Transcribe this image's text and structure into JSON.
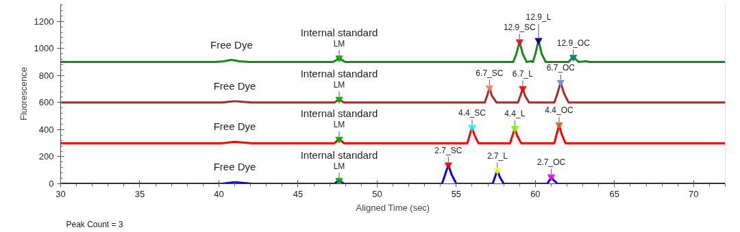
{
  "chart_data": {
    "type": "line",
    "xlabel": "Aligned Time (sec)",
    "ylabel": "Fluorescence",
    "xlim": [
      30,
      72
    ],
    "xticks": [
      30,
      35,
      40,
      45,
      50,
      55,
      60,
      65,
      70
    ],
    "ylim": [
      0,
      1330
    ],
    "yticks": [
      0,
      200,
      400,
      600,
      800,
      1000,
      1200
    ],
    "grid": false,
    "line_style": "solid",
    "marker": "none",
    "series": [
      {
        "color": "#138a13",
        "x": [
          30,
          39.8,
          40.3,
          40.8,
          41.3,
          41.9,
          47.2,
          47.45,
          47.6,
          47.75,
          48,
          58.6,
          58.8,
          59.0,
          59.2,
          59.45,
          59.7,
          59.85,
          60.0,
          60.2,
          60.4,
          60.65,
          62.1,
          62.25,
          62.4,
          62.55,
          62.75,
          63.2,
          63.4,
          72
        ],
        "values": [
          900,
          900,
          905,
          915,
          905,
          900,
          900,
          915,
          930,
          915,
          900,
          900,
          960,
          1050,
          960,
          900,
          905,
          900,
          960,
          1060,
          960,
          900,
          900,
          920,
          935,
          920,
          900,
          905,
          900,
          900
        ]
      },
      {
        "color": "#a52a2a",
        "x": [
          30,
          40.2,
          40.6,
          41.0,
          41.5,
          42.1,
          47.3,
          47.6,
          47.9,
          56.8,
          56.95,
          57.1,
          57.25,
          57.55,
          58.9,
          59.05,
          59.2,
          59.35,
          59.6,
          61.2,
          61.4,
          61.6,
          61.8,
          62.1,
          72
        ],
        "values": [
          600,
          600,
          605,
          610,
          605,
          600,
          600,
          625,
          600,
          600,
          650,
          710,
          650,
          600,
          600,
          650,
          705,
          650,
          600,
          600,
          670,
          750,
          670,
          600,
          600
        ]
      },
      {
        "color": "#ff0000",
        "x": [
          30,
          40.2,
          40.6,
          41.0,
          41.5,
          42.1,
          47.3,
          47.6,
          47.9,
          55.7,
          55.85,
          56.0,
          56.15,
          56.4,
          58.4,
          58.55,
          58.7,
          58.85,
          59.1,
          61.2,
          61.35,
          61.5,
          61.65,
          61.9,
          72
        ],
        "values": [
          300,
          300,
          305,
          310,
          305,
          300,
          300,
          330,
          300,
          300,
          360,
          418,
          360,
          300,
          300,
          355,
          410,
          355,
          300,
          300,
          370,
          437,
          370,
          300,
          300
        ]
      },
      {
        "color": "#0000ff",
        "x": [
          30,
          40.2,
          40.6,
          41.0,
          41.5,
          42.1,
          47.3,
          47.6,
          47.9,
          54.1,
          54.3,
          54.5,
          54.7,
          55.0,
          57.3,
          57.45,
          57.6,
          57.75,
          58.0,
          60.75,
          60.9,
          61.0,
          61.15,
          61.4,
          72
        ],
        "values": [
          0,
          0,
          6,
          12,
          6,
          0,
          0,
          25,
          0,
          0,
          70,
          140,
          70,
          0,
          0,
          50,
          100,
          50,
          0,
          0,
          27,
          53,
          27,
          0,
          0
        ]
      },
      {
        "type": "scatter",
        "marker": "triangle",
        "x": [
          47.6,
          59.0,
          60.2,
          62.4,
          47.6,
          57.1,
          59.2,
          61.6,
          47.6,
          56.0,
          58.7,
          61.5,
          47.6,
          54.5,
          57.6,
          61.0
        ],
        "values": [
          930,
          1050,
          1060,
          935,
          625,
          710,
          705,
          750,
          330,
          418,
          410,
          437,
          25,
          140,
          100,
          53
        ],
        "colors": [
          "#00b000",
          "#dc143c",
          "#000080",
          "#008080",
          "#00b000",
          "#ff7f50",
          "#ff0000",
          "#6495ed",
          "#00b000",
          "#00ffff",
          "#7cfc00",
          "#d2691e",
          "#00b000",
          "#ff0000",
          "#ffff00",
          "#ff00ff"
        ]
      }
    ],
    "annotations": [
      {
        "text": "Free Dye",
        "x": 40.8,
        "y": 915
      },
      {
        "text": "LM",
        "x": 47.6,
        "y": 930
      },
      {
        "text": "Internal standard",
        "x": 47.6,
        "y": 930
      },
      {
        "text": "12.9_SC",
        "x": 59.0,
        "y": 1050
      },
      {
        "text": "12.9_L",
        "x": 60.2,
        "y": 1060
      },
      {
        "text": "12.9_OC",
        "x": 62.4,
        "y": 935
      },
      {
        "text": "Free Dye",
        "x": 41.0,
        "y": 610
      },
      {
        "text": "LM",
        "x": 47.6,
        "y": 625
      },
      {
        "text": "Internal standard",
        "x": 47.6,
        "y": 625
      },
      {
        "text": "6.7_SC",
        "x": 57.1,
        "y": 710
      },
      {
        "text": "6.7_L",
        "x": 59.2,
        "y": 705
      },
      {
        "text": "6.7_OC",
        "x": 61.6,
        "y": 750
      },
      {
        "text": "Free Dye",
        "x": 41.0,
        "y": 310
      },
      {
        "text": "LM",
        "x": 47.6,
        "y": 330
      },
      {
        "text": "Internal standard",
        "x": 47.6,
        "y": 330
      },
      {
        "text": "4.4_SC",
        "x": 56.0,
        "y": 418
      },
      {
        "text": "4.4_L",
        "x": 58.7,
        "y": 410
      },
      {
        "text": "4.4_OC",
        "x": 61.5,
        "y": 437
      },
      {
        "text": "Free Dye",
        "x": 41.0,
        "y": 12
      },
      {
        "text": "LM",
        "x": 47.6,
        "y": 25
      },
      {
        "text": "Internal standard",
        "x": 47.6,
        "y": 25
      },
      {
        "text": "2.7_SC",
        "x": 54.5,
        "y": 140
      },
      {
        "text": "2.7_L",
        "x": 57.6,
        "y": 100
      },
      {
        "text": "2.7_OC",
        "x": 61.0,
        "y": 53
      },
      "Peak Count = 3"
    ]
  }
}
